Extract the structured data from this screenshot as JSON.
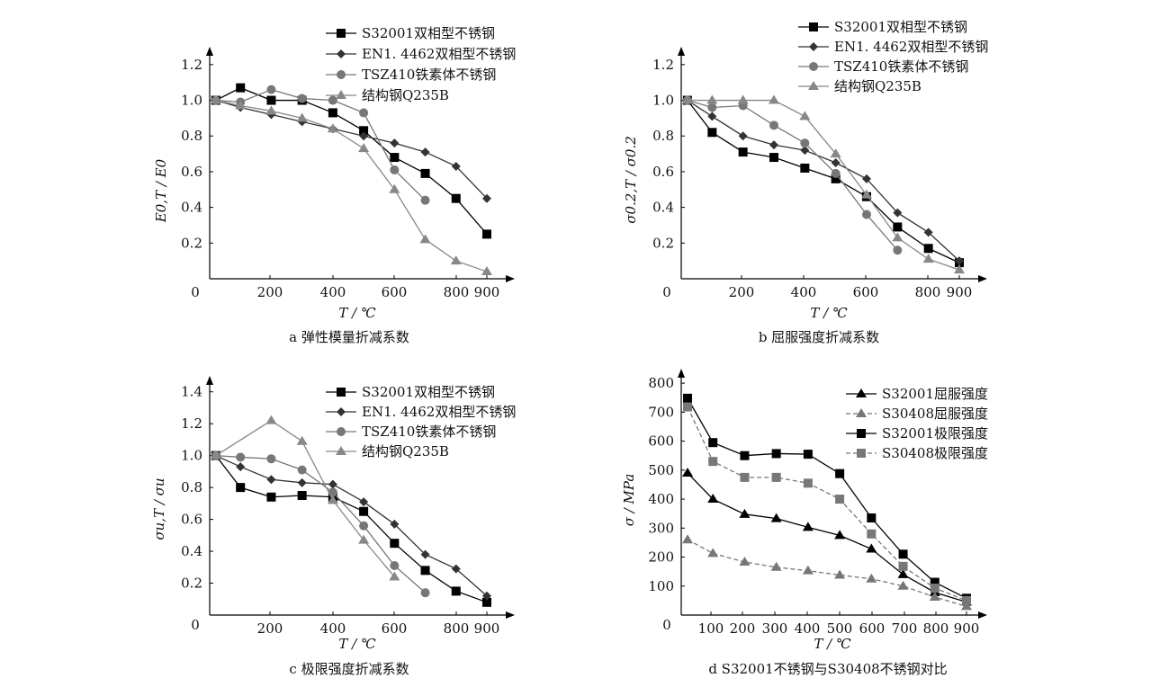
{
  "figure_title": "",
  "chart_data": [
    {
      "id": "a",
      "type": "line",
      "caption": "a  弹性模量折减系数",
      "xlabel": "T / ℃",
      "ylabel": "E0,T / E0",
      "xticks": [
        "0",
        "200",
        "400",
        "600",
        "800",
        "900"
      ],
      "yticks": [
        "0.2",
        "0.4",
        "0.6",
        "0.8",
        "1.0",
        "1.2"
      ],
      "xlim": [
        0,
        980
      ],
      "ylim": [
        0.0,
        1.3
      ],
      "series": [
        {
          "name": "S32001双相型不锈钢",
          "marker": "square",
          "color": "#000000",
          "dash": false,
          "x": [
            20,
            100,
            200,
            300,
            400,
            500,
            600,
            700,
            800,
            900
          ],
          "y": [
            1.0,
            1.07,
            1.0,
            1.0,
            0.93,
            0.83,
            0.68,
            0.59,
            0.45,
            0.25
          ]
        },
        {
          "name": "EN1. 4462双相型不锈钢",
          "marker": "diamond",
          "color": "#333333",
          "dash": false,
          "x": [
            20,
            100,
            200,
            300,
            400,
            500,
            600,
            700,
            800,
            900
          ],
          "y": [
            1.0,
            0.96,
            0.92,
            0.88,
            0.84,
            0.8,
            0.76,
            0.71,
            0.63,
            0.45
          ]
        },
        {
          "name": "TSZ410铁素体不锈钢",
          "marker": "circle",
          "color": "#777777",
          "dash": false,
          "x": [
            20,
            100,
            200,
            300,
            400,
            500,
            600,
            700
          ],
          "y": [
            1.0,
            0.99,
            1.06,
            1.01,
            1.0,
            0.93,
            0.61,
            0.44
          ]
        },
        {
          "name": "结构钢Q235B",
          "marker": "triangle",
          "color": "#888888",
          "dash": false,
          "x": [
            20,
            100,
            200,
            300,
            400,
            500,
            600,
            700,
            800,
            900
          ],
          "y": [
            1.0,
            0.97,
            0.94,
            0.9,
            0.84,
            0.73,
            0.5,
            0.22,
            0.1,
            0.04
          ]
        }
      ]
    },
    {
      "id": "b",
      "type": "line",
      "caption": "b  屈服强度折减系数",
      "xlabel": "T / ℃",
      "ylabel": "σ0.2,T / σ0.2",
      "xticks": [
        "0",
        "200",
        "400",
        "600",
        "800",
        "900"
      ],
      "yticks": [
        "0.2",
        "0.4",
        "0.6",
        "0.8",
        "1.0",
        "1.2"
      ],
      "xlim": [
        0,
        980
      ],
      "ylim": [
        0.0,
        1.3
      ],
      "series": [
        {
          "name": "S32001双相型不锈钢",
          "marker": "square",
          "color": "#000000",
          "dash": false,
          "x": [
            20,
            100,
            200,
            300,
            400,
            500,
            600,
            700,
            800,
            900
          ],
          "y": [
            1.0,
            0.82,
            0.71,
            0.68,
            0.62,
            0.56,
            0.46,
            0.29,
            0.17,
            0.09
          ]
        },
        {
          "name": "EN1. 4462双相型不锈钢",
          "marker": "diamond",
          "color": "#333333",
          "dash": false,
          "x": [
            20,
            100,
            200,
            300,
            400,
            500,
            600,
            700,
            800,
            900
          ],
          "y": [
            1.0,
            0.91,
            0.8,
            0.75,
            0.72,
            0.65,
            0.56,
            0.37,
            0.26,
            0.1
          ]
        },
        {
          "name": "TSZ410铁素体不锈钢",
          "marker": "circle",
          "color": "#777777",
          "dash": false,
          "x": [
            20,
            100,
            200,
            300,
            400,
            500,
            600,
            700
          ],
          "y": [
            1.0,
            0.96,
            0.97,
            0.86,
            0.76,
            0.59,
            0.36,
            0.16
          ]
        },
        {
          "name": "结构钢Q235B",
          "marker": "triangle",
          "color": "#888888",
          "dash": false,
          "x": [
            20,
            100,
            200,
            300,
            400,
            500,
            600,
            700,
            800,
            900
          ],
          "y": [
            1.0,
            1.0,
            1.0,
            1.0,
            0.91,
            0.7,
            0.47,
            0.23,
            0.11,
            0.05
          ]
        }
      ]
    },
    {
      "id": "c",
      "type": "line",
      "caption": "c  极限强度折减系数",
      "xlabel": "T / ℃",
      "ylabel": "σu,T / σu",
      "xticks": [
        "0",
        "200",
        "400",
        "600",
        "800",
        "900"
      ],
      "yticks": [
        "0.2",
        "0.4",
        "0.6",
        "0.8",
        "1.0",
        "1.2",
        "1.4"
      ],
      "xlim": [
        0,
        980
      ],
      "ylim": [
        0.0,
        1.5
      ],
      "series": [
        {
          "name": "S32001双相型不锈钢",
          "marker": "square",
          "color": "#000000",
          "dash": false,
          "x": [
            20,
            100,
            200,
            300,
            400,
            500,
            600,
            700,
            800,
            900
          ],
          "y": [
            1.0,
            0.8,
            0.74,
            0.75,
            0.74,
            0.65,
            0.45,
            0.28,
            0.15,
            0.08
          ]
        },
        {
          "name": "EN1. 4462双相型不锈钢",
          "marker": "diamond",
          "color": "#333333",
          "dash": false,
          "x": [
            20,
            100,
            200,
            300,
            400,
            500,
            600,
            700,
            800,
            900
          ],
          "y": [
            1.0,
            0.93,
            0.85,
            0.83,
            0.82,
            0.71,
            0.57,
            0.38,
            0.29,
            0.12
          ]
        },
        {
          "name": "TSZ410铁素体不锈钢",
          "marker": "circle",
          "color": "#777777",
          "dash": false,
          "x": [
            20,
            100,
            200,
            300,
            400,
            500,
            600,
            700
          ],
          "y": [
            1.0,
            0.99,
            0.98,
            0.91,
            0.77,
            0.56,
            0.31,
            0.14
          ]
        },
        {
          "name": "结构钢Q235B",
          "marker": "triangle",
          "color": "#888888",
          "dash": false,
          "x": [
            20,
            200,
            300,
            400,
            500,
            600
          ],
          "y": [
            1.0,
            1.22,
            1.09,
            0.72,
            0.47,
            0.24
          ]
        }
      ]
    },
    {
      "id": "d",
      "type": "line",
      "caption": "d  S32001不锈钢与S30408不锈钢对比",
      "xlabel": "T / ℃",
      "ylabel": "σ / MPa",
      "xticks": [
        "0",
        "100",
        "200",
        "300",
        "400",
        "500",
        "600",
        "700",
        "800",
        "900"
      ],
      "yticks": [
        "100",
        "200",
        "300",
        "400",
        "500",
        "600",
        "700",
        "800"
      ],
      "xlim": [
        0,
        970
      ],
      "ylim": [
        0,
        850
      ],
      "series": [
        {
          "name": "S32001屈服强度",
          "marker": "triangle",
          "color": "#000000",
          "dash": false,
          "x": [
            20,
            100,
            200,
            300,
            400,
            500,
            600,
            700,
            800,
            900
          ],
          "y": [
            490,
            400,
            348,
            333,
            303,
            275,
            228,
            140,
            78,
            45
          ]
        },
        {
          "name": "S30408屈服强度",
          "marker": "triangle",
          "color": "#777777",
          "dash": true,
          "x": [
            20,
            100,
            200,
            300,
            400,
            500,
            600,
            700,
            800,
            900
          ],
          "y": [
            260,
            213,
            183,
            165,
            153,
            138,
            125,
            100,
            62,
            30
          ]
        },
        {
          "name": "S32001极限强度",
          "marker": "square",
          "color": "#000000",
          "dash": false,
          "x": [
            20,
            100,
            200,
            300,
            400,
            500,
            600,
            700,
            800,
            900
          ],
          "y": [
            748,
            595,
            550,
            557,
            555,
            488,
            335,
            210,
            113,
            58
          ]
        },
        {
          "name": "S30408极限强度",
          "marker": "square",
          "color": "#777777",
          "dash": true,
          "x": [
            20,
            100,
            200,
            300,
            400,
            500,
            600,
            700,
            800,
            900
          ],
          "y": [
            718,
            530,
            475,
            475,
            455,
            400,
            280,
            168,
            93,
            50
          ]
        }
      ]
    }
  ]
}
